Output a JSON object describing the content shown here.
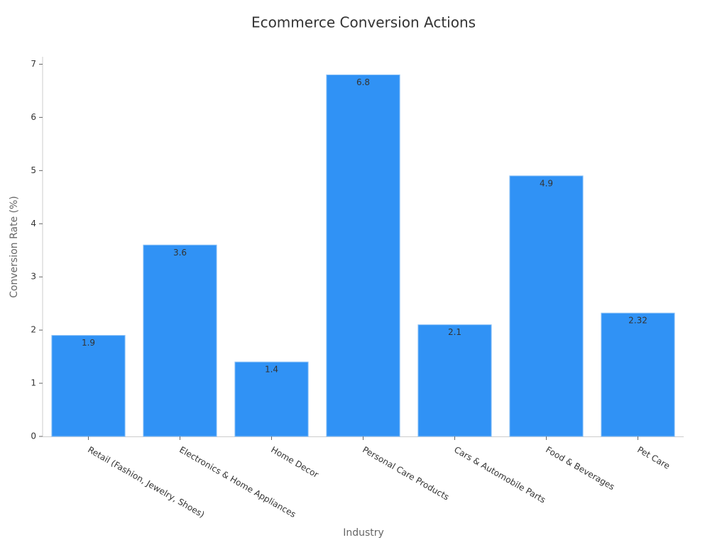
{
  "chart_data": {
    "type": "bar",
    "title": "Ecommerce Conversion Actions",
    "x_label": "Industry",
    "y_label": "Conversion Rate (%)",
    "categories": [
      "Retail (Fashion, Jewelry, Shoes)",
      "Electronics & Home Appliances",
      "Home Decor",
      "Personal Care Products",
      "Cars & Automobile Parts",
      "Food & Beverages",
      "Pet Care"
    ],
    "values": [
      1.9,
      3.6,
      1.4,
      6.8,
      2.1,
      4.9,
      2.32
    ],
    "color": "#3092f5",
    "ylim": [
      0,
      7.14
    ],
    "yticks": [
      0,
      1,
      2,
      3,
      4,
      5,
      6,
      7
    ],
    "grid": false
  }
}
